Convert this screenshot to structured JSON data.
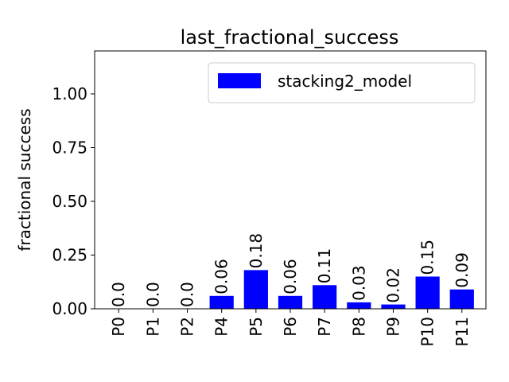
{
  "chart_data": {
    "type": "bar",
    "title": "last_fractional_success",
    "xlabel": "",
    "ylabel": "fractional success",
    "ylim": [
      0,
      1.2
    ],
    "yticks": [
      0.0,
      0.25,
      0.5,
      0.75,
      1.0
    ],
    "ytick_labels": [
      "0.00",
      "0.25",
      "0.50",
      "0.75",
      "1.00"
    ],
    "categories": [
      "P0",
      "P1",
      "P2",
      "P4",
      "P5",
      "P6",
      "P7",
      "P8",
      "P9",
      "P10",
      "P11"
    ],
    "series": [
      {
        "name": "stacking2_model",
        "color": "#0000ff",
        "values": [
          0.0,
          0.0,
          0.0,
          0.06,
          0.18,
          0.06,
          0.11,
          0.03,
          0.02,
          0.15,
          0.09
        ],
        "labels": [
          "0.0",
          "0.0",
          "0.0",
          "0.06",
          "0.18",
          "0.06",
          "0.11",
          "0.03",
          "0.02",
          "0.15",
          "0.09"
        ]
      }
    ],
    "legend": {
      "placement": "upper right",
      "entries": [
        "stacking2_model"
      ]
    },
    "grid": false
  }
}
